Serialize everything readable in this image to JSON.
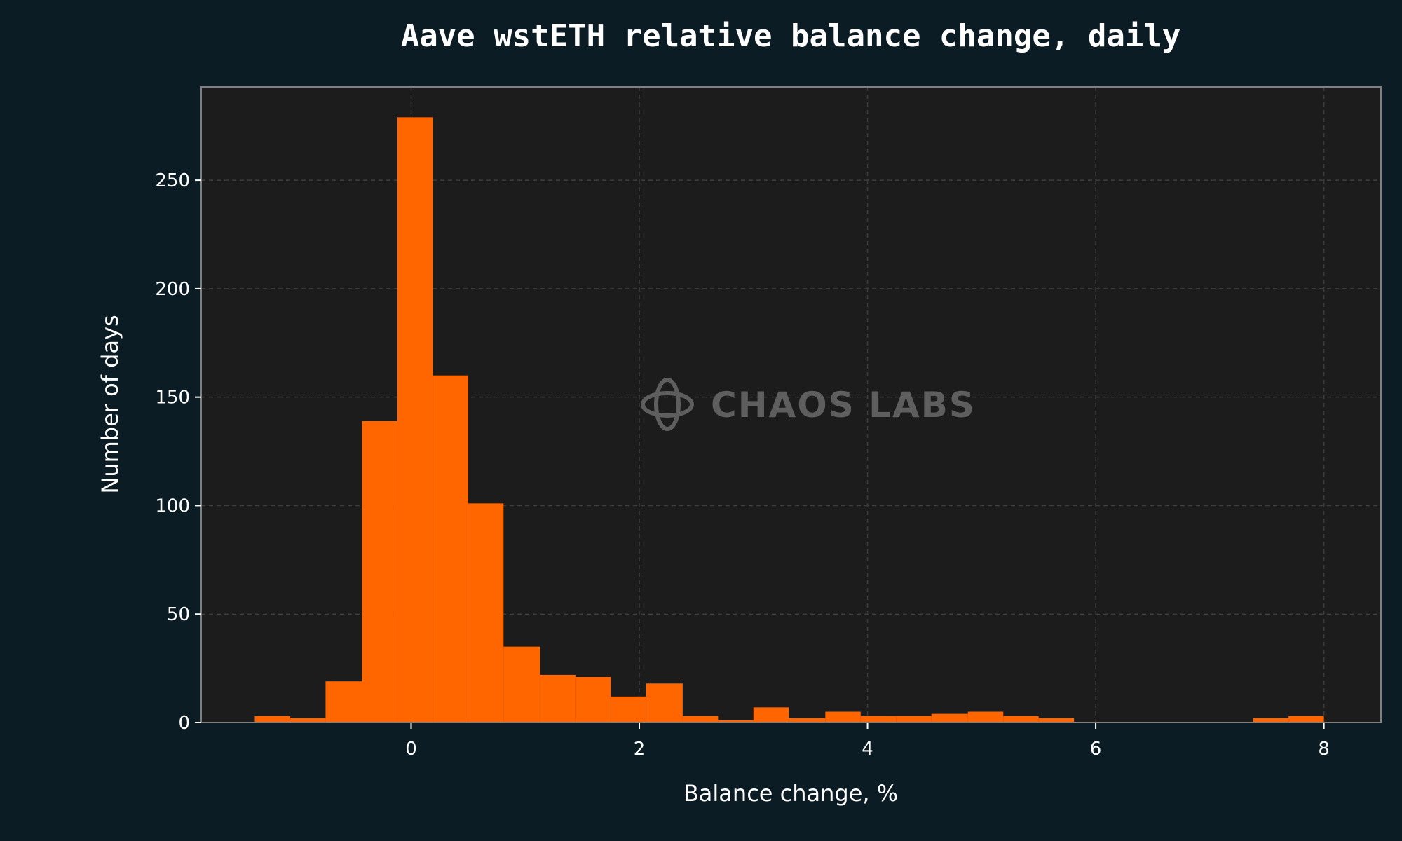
{
  "chart_data": {
    "type": "bar",
    "title": "Aave wstETH relative balance change, daily",
    "xlabel": "Balance change, %",
    "ylabel": "Number of days",
    "watermark": "CHAOS LABS",
    "xlim": [
      -1.84,
      8.5
    ],
    "ylim": [
      0,
      293
    ],
    "xticks": [
      0,
      2,
      4,
      6,
      8
    ],
    "yticks": [
      0,
      50,
      100,
      150,
      200,
      250
    ],
    "grid": true,
    "bins": [
      {
        "x0": -1.37,
        "x1": -1.06,
        "count": 3
      },
      {
        "x0": -1.06,
        "x1": -0.75,
        "count": 2
      },
      {
        "x0": -0.75,
        "x1": -0.43,
        "count": 19
      },
      {
        "x0": -0.43,
        "x1": -0.12,
        "count": 139
      },
      {
        "x0": -0.12,
        "x1": 0.19,
        "count": 279
      },
      {
        "x0": 0.19,
        "x1": 0.5,
        "count": 160
      },
      {
        "x0": 0.5,
        "x1": 0.81,
        "count": 101
      },
      {
        "x0": 0.81,
        "x1": 1.13,
        "count": 35
      },
      {
        "x0": 1.13,
        "x1": 1.44,
        "count": 22
      },
      {
        "x0": 1.44,
        "x1": 1.75,
        "count": 21
      },
      {
        "x0": 1.75,
        "x1": 2.06,
        "count": 12
      },
      {
        "x0": 2.06,
        "x1": 2.38,
        "count": 18
      },
      {
        "x0": 2.38,
        "x1": 2.69,
        "count": 3
      },
      {
        "x0": 2.69,
        "x1": 3.0,
        "count": 1
      },
      {
        "x0": 3.0,
        "x1": 3.31,
        "count": 7
      },
      {
        "x0": 3.31,
        "x1": 3.63,
        "count": 2
      },
      {
        "x0": 3.63,
        "x1": 3.94,
        "count": 5
      },
      {
        "x0": 3.94,
        "x1": 4.25,
        "count": 3
      },
      {
        "x0": 4.25,
        "x1": 4.56,
        "count": 3
      },
      {
        "x0": 4.56,
        "x1": 4.88,
        "count": 4
      },
      {
        "x0": 4.88,
        "x1": 5.19,
        "count": 5
      },
      {
        "x0": 5.19,
        "x1": 5.5,
        "count": 3
      },
      {
        "x0": 5.5,
        "x1": 5.81,
        "count": 2
      },
      {
        "x0": 7.38,
        "x1": 7.69,
        "count": 2
      },
      {
        "x0": 7.69,
        "x1": 8.0,
        "count": 3
      }
    ]
  },
  "colors": {
    "background": "#0b1c24",
    "plot_background": "#1c1c1c",
    "bar": "#ff6600",
    "text": "#ffffff",
    "grid": "#3c3c3c",
    "axis": "#808080",
    "watermark": "#6a6a6a"
  }
}
